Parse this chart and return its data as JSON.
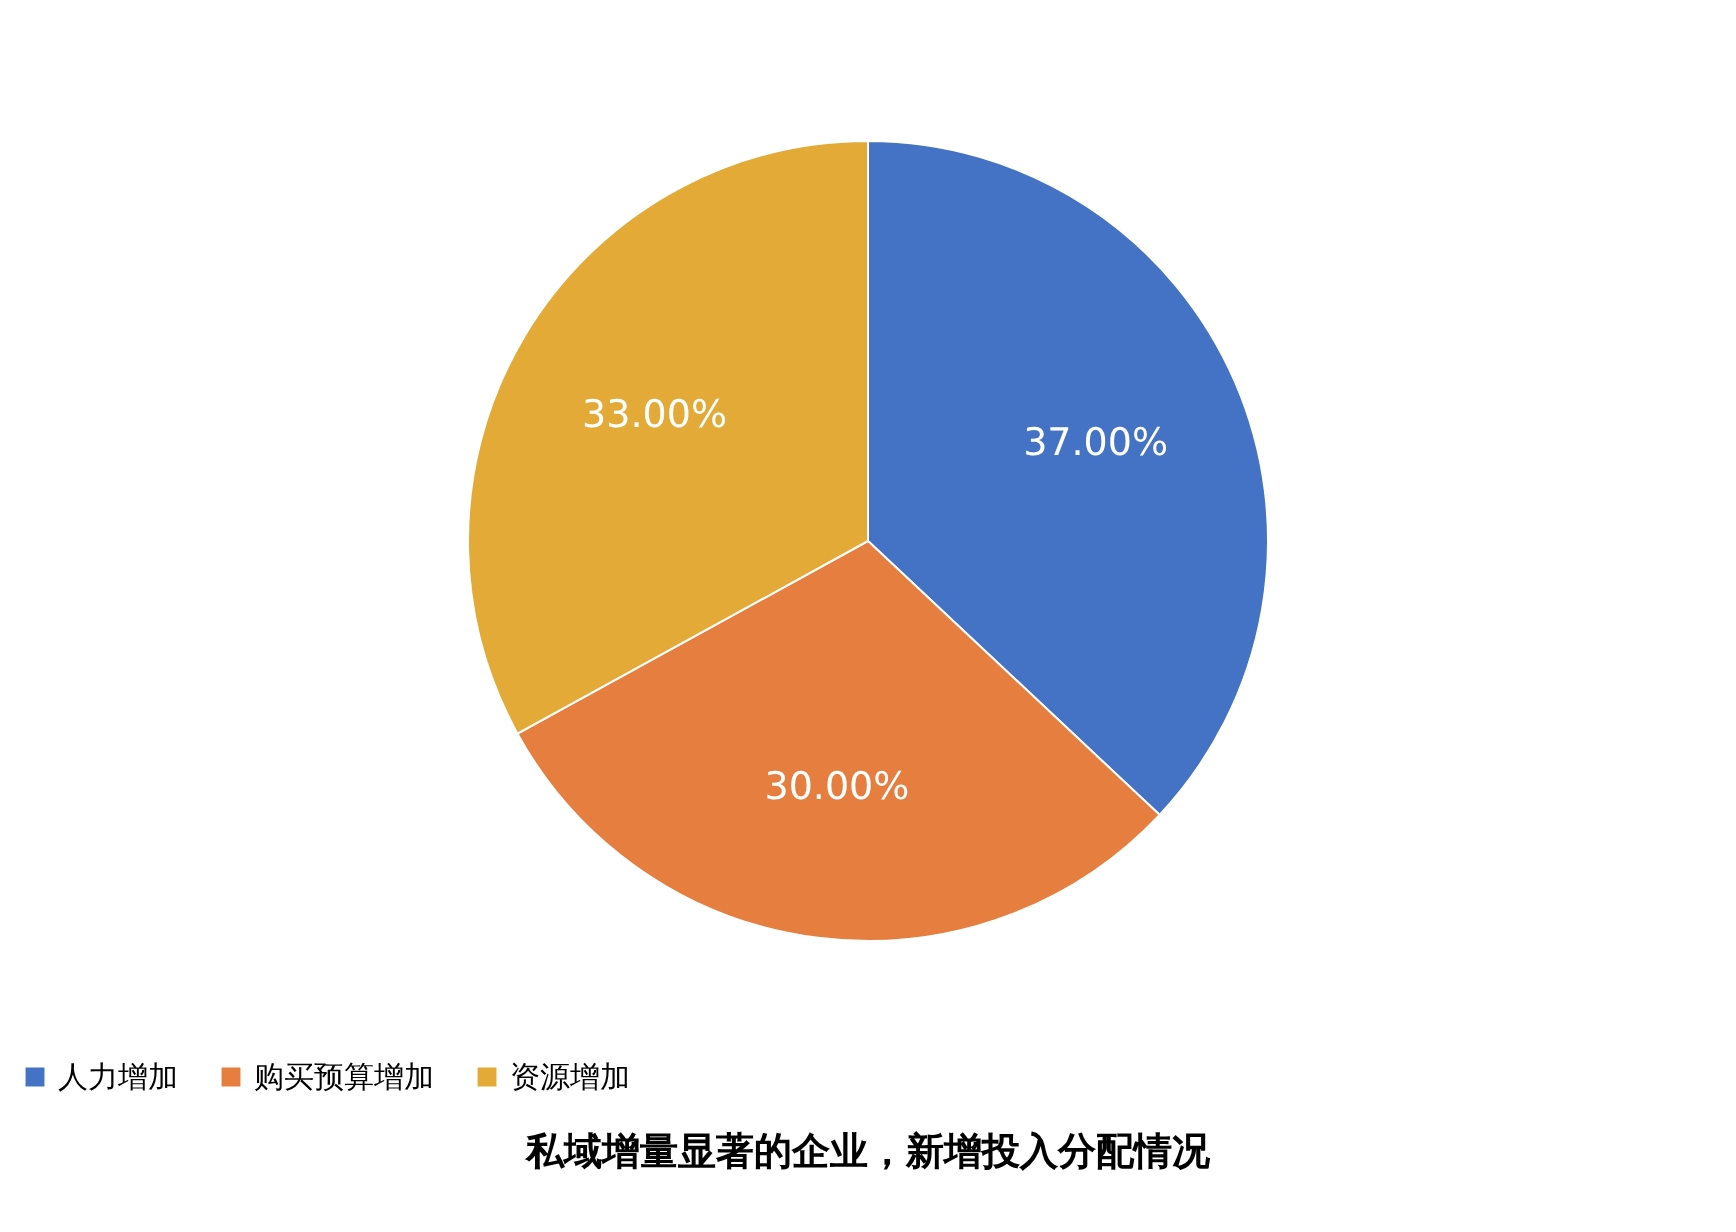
{
  "chart_data": {
    "type": "pie",
    "title": "私域增量显著的企业，新增投入分配情况",
    "categories": [
      "人力增加",
      "购买预算增加",
      "资源增加"
    ],
    "values": [
      37,
      30,
      33
    ],
    "colors": [
      "#4472c4",
      "#e67e3f",
      "#e3aa37"
    ],
    "value_labels": [
      "37.00%",
      "30.00%",
      "33.00%"
    ],
    "legend": "bottom"
  }
}
